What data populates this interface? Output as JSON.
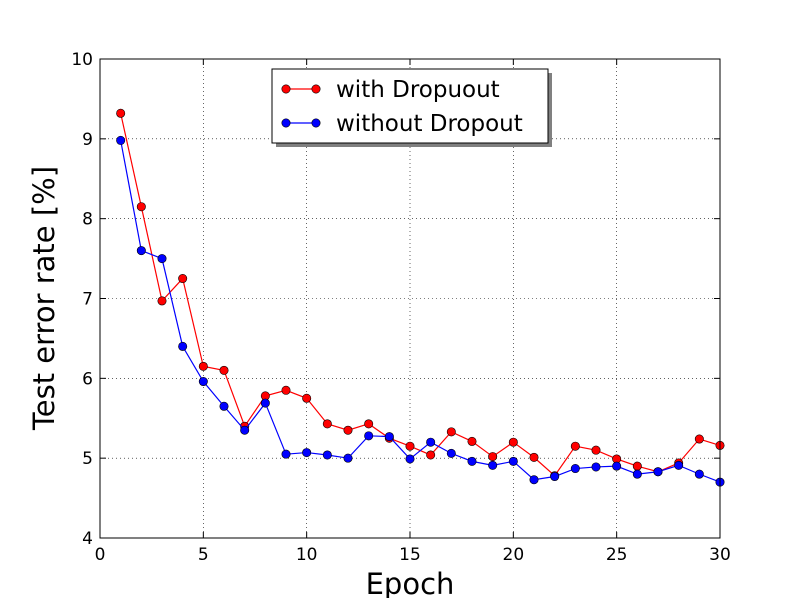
{
  "chart_data": {
    "type": "line",
    "title": "",
    "xlabel": "Epoch",
    "ylabel": "Test error rate [%]",
    "xlim": [
      0,
      30
    ],
    "ylim": [
      4,
      10
    ],
    "xticks": [
      0,
      5,
      10,
      15,
      20,
      25,
      30
    ],
    "yticks": [
      4,
      5,
      6,
      7,
      8,
      9,
      10
    ],
    "grid": true,
    "legend_position": "top-center",
    "x": [
      1,
      2,
      3,
      4,
      5,
      6,
      7,
      8,
      9,
      10,
      11,
      12,
      13,
      14,
      15,
      16,
      17,
      18,
      19,
      20,
      21,
      22,
      23,
      24,
      25,
      26,
      27,
      28,
      29,
      30
    ],
    "series": [
      {
        "name": "with Dropuout",
        "color": "#ff0000",
        "values": [
          9.32,
          8.15,
          6.97,
          7.25,
          6.15,
          6.1,
          5.4,
          5.78,
          5.85,
          5.75,
          5.43,
          5.35,
          5.43,
          5.25,
          5.15,
          5.04,
          5.33,
          5.21,
          5.02,
          5.2,
          5.01,
          4.78,
          5.15,
          5.1,
          4.99,
          4.9,
          4.83,
          4.94,
          5.24,
          5.16
        ]
      },
      {
        "name": "without Dropout",
        "color": "#0000ff",
        "values": [
          8.98,
          7.6,
          7.5,
          6.4,
          5.96,
          5.65,
          5.35,
          5.69,
          5.05,
          5.07,
          5.04,
          5.0,
          5.28,
          5.27,
          4.99,
          5.2,
          5.06,
          4.96,
          4.91,
          4.96,
          4.73,
          4.77,
          4.87,
          4.89,
          4.9,
          4.8,
          4.83,
          4.91,
          4.8,
          4.7
        ]
      }
    ]
  }
}
